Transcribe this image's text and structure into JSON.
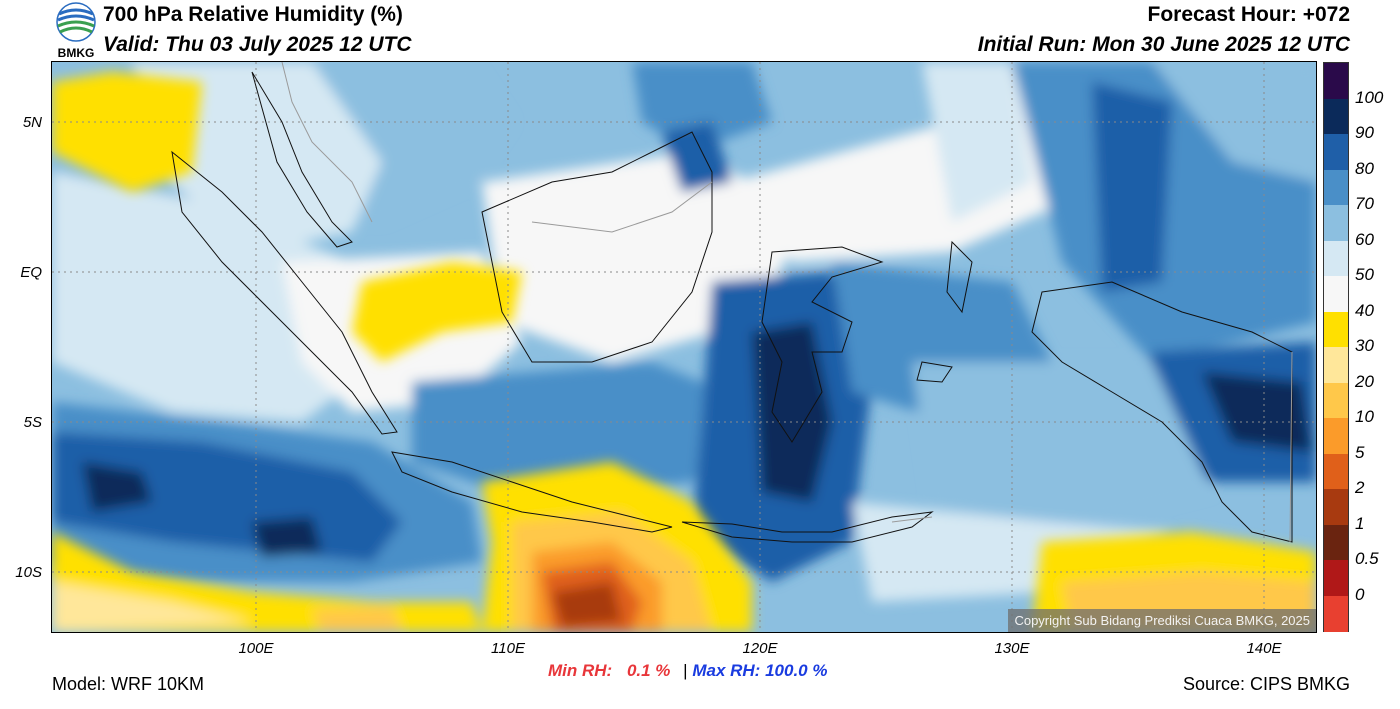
{
  "header": {
    "title": "700 hPa Relative Humidity (%)",
    "valid": "Valid: Thu 03 July 2025 12 UTC",
    "forecast_hour": "Forecast Hour: +072",
    "initial_run": "Initial Run: Mon 30 June 2025 12 UTC",
    "logo_text": "BMKG"
  },
  "map": {
    "lat_labels": [
      "5N",
      "EQ",
      "5S",
      "10S"
    ],
    "lon_labels": [
      "100E",
      "110E",
      "120E",
      "130E",
      "140E"
    ],
    "copyright": "Copyright Sub Bidang Prediksi Cuaca BMKG, 2025"
  },
  "colorbar": {
    "labels": [
      "100",
      "90",
      "80",
      "70",
      "60",
      "50",
      "40",
      "30",
      "20",
      "10",
      "5",
      "2",
      "1",
      "0.5",
      "0"
    ],
    "colors": [
      "#2a0a4a",
      "#0b2a5a",
      "#1f5fa8",
      "#4a8fc8",
      "#8cbfe0",
      "#d5e8f3",
      "#f7f7f7",
      "#ffe000",
      "#ffe79a",
      "#ffc84a",
      "#fb9b2a",
      "#e0601a",
      "#a83a10",
      "#6a2410",
      "#b01818",
      "#e84030"
    ]
  },
  "footer": {
    "model": "Model: WRF 10KM",
    "source": "Source: CIPS BMKG",
    "min_rh_label": "Min RH:",
    "min_rh_value": "0.1 %",
    "separator": "|",
    "max_rh_label": "Max RH:",
    "max_rh_value": "100.0 %"
  },
  "colors": {
    "min_rh": "#e8363a",
    "max_rh": "#1a3ce0"
  }
}
